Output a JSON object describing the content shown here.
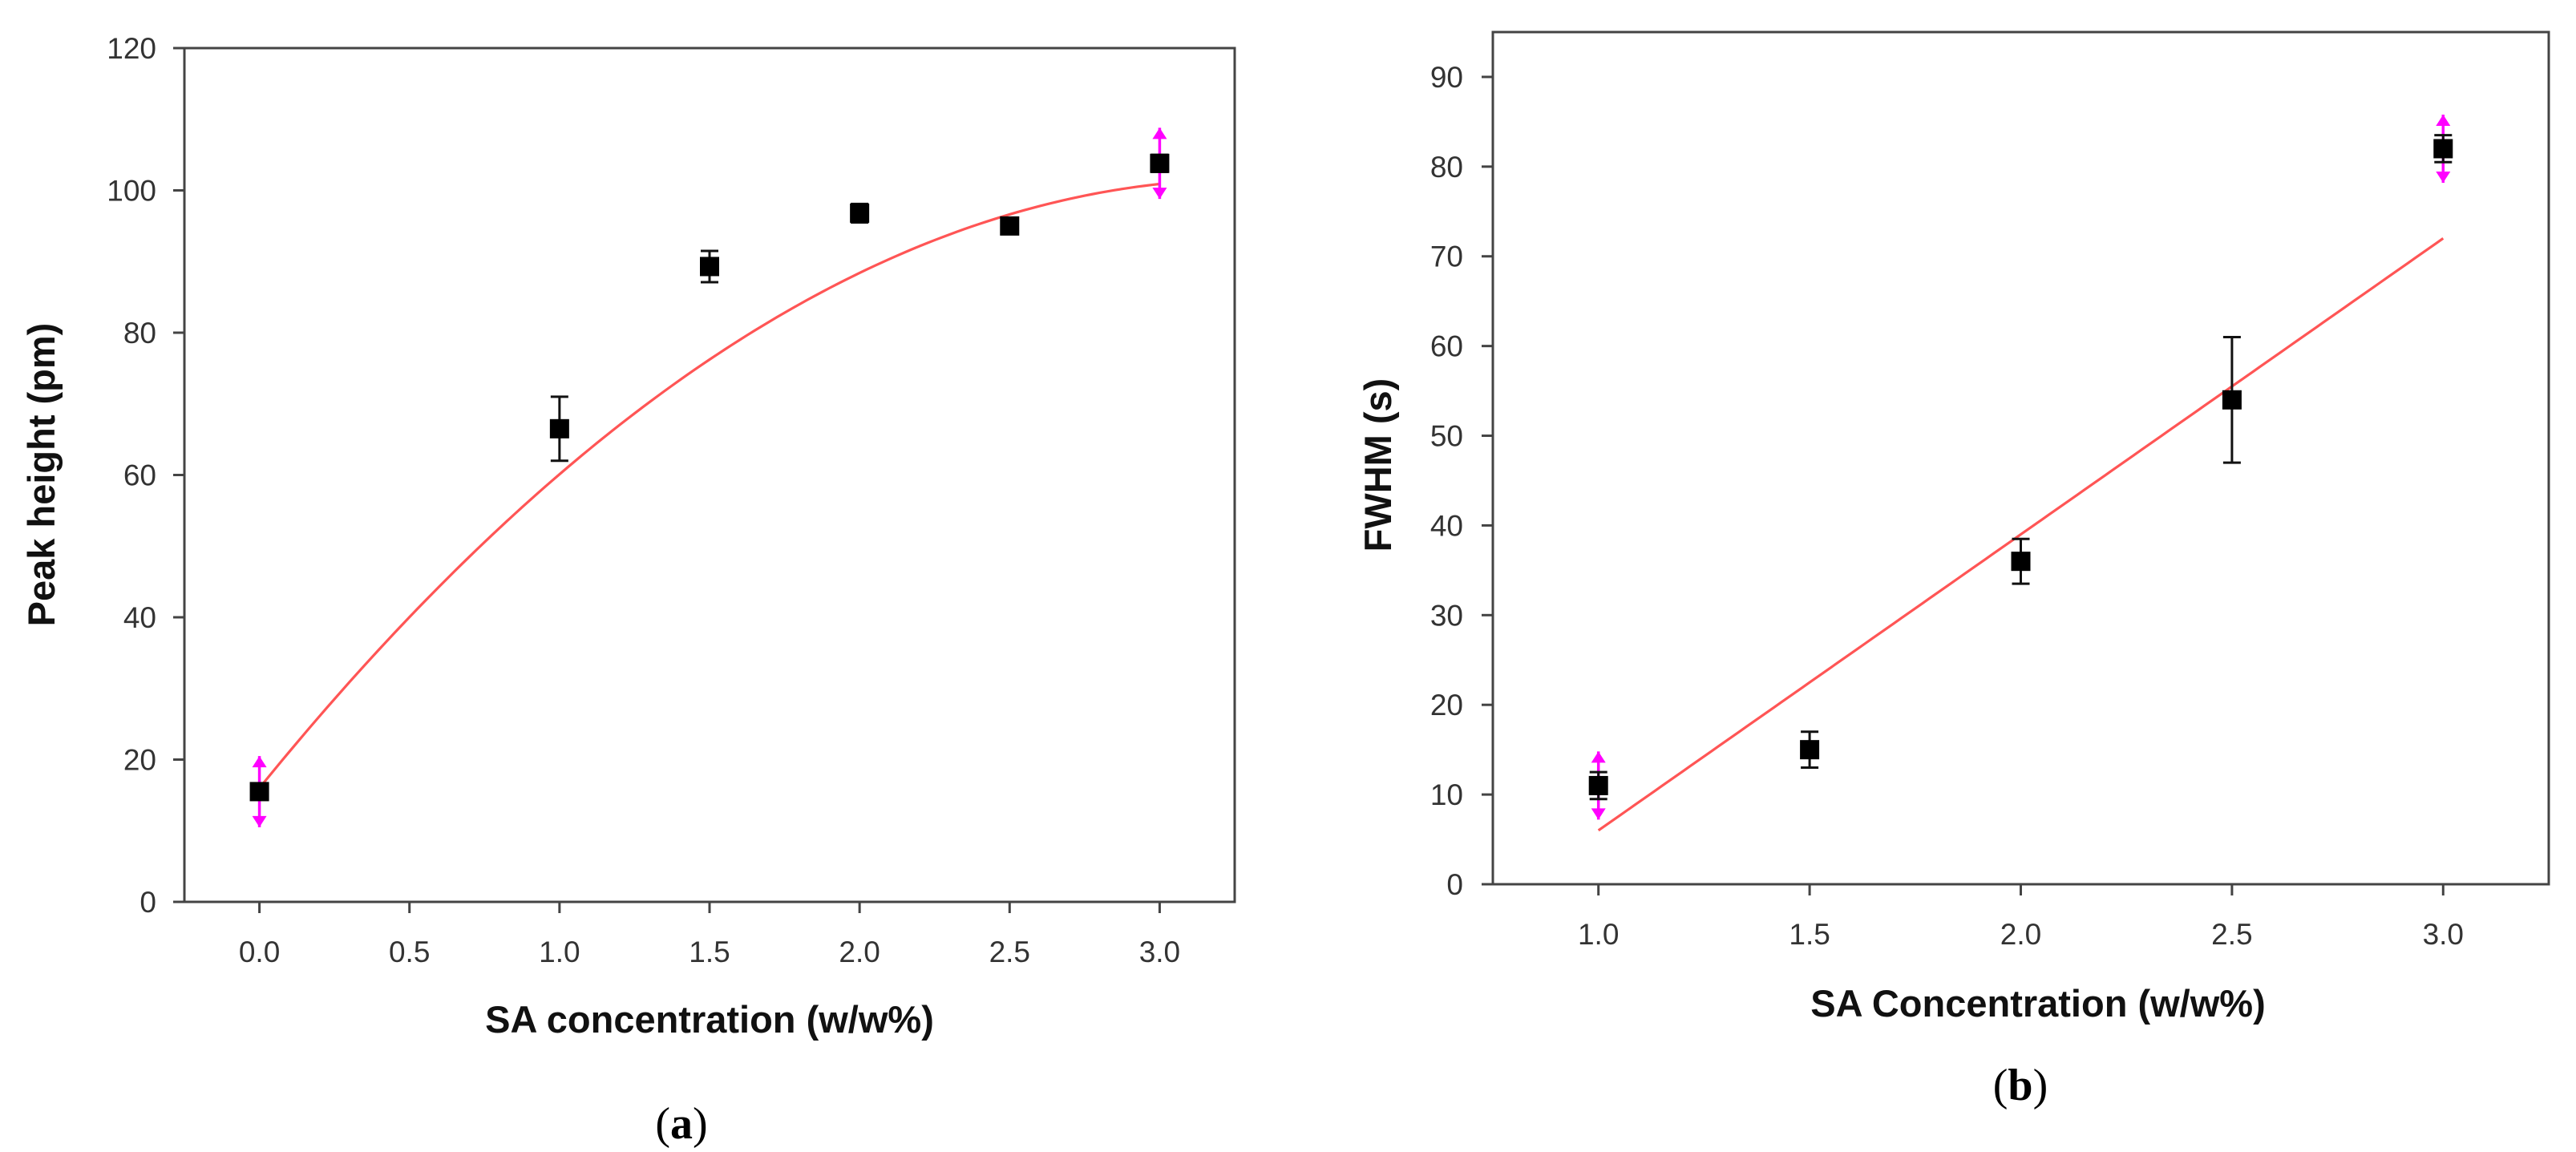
{
  "chart_data": [
    {
      "id": "a",
      "type": "scatter",
      "panel_label": "a",
      "xlabel": "SA concentration (w/w%)",
      "ylabel": "Peak height (pm)",
      "xlim": [
        -0.25,
        3.25
      ],
      "ylim": [
        0,
        120
      ],
      "xticks": [
        0.0,
        0.5,
        1.0,
        1.5,
        2.0,
        2.5,
        3.0
      ],
      "xtick_labels": [
        "0.0",
        "0.5",
        "1.0",
        "1.5",
        "2.0",
        "2.5",
        "3.0"
      ],
      "yticks": [
        0,
        20,
        40,
        60,
        80,
        100,
        120
      ],
      "ytick_labels": [
        "0",
        "20",
        "40",
        "60",
        "80",
        "100",
        "120"
      ],
      "grid": false,
      "series": [
        {
          "name": "Peak height",
          "points": [
            {
              "x": 0.0,
              "y": 15.5,
              "err": 1.0,
              "highlight": true
            },
            {
              "x": 1.0,
              "y": 66.5,
              "err": 4.5,
              "highlight": false
            },
            {
              "x": 1.5,
              "y": 89.3,
              "err": 2.2,
              "highlight": false
            },
            {
              "x": 2.0,
              "y": 96.8,
              "err": 1.3,
              "highlight": false
            },
            {
              "x": 2.5,
              "y": 95.0,
              "err": 0.8,
              "highlight": false
            },
            {
              "x": 3.0,
              "y": 103.8,
              "err": 1.2,
              "highlight": true
            }
          ]
        }
      ],
      "fit": {
        "kind": "quadratic",
        "coeffs": [
          16.0,
          52.0,
          -7.9
        ],
        "x_range": [
          0.0,
          3.0
        ]
      },
      "highlight_marker": {
        "half_height": 5.0
      },
      "colors": {
        "points": "#000000",
        "fit": "#ff5555",
        "highlight": "#ff00ff"
      }
    },
    {
      "id": "b",
      "type": "scatter",
      "panel_label": "b",
      "xlabel": "SA Concentration (w/w%)",
      "ylabel": "FWHM (s)",
      "xlim": [
        0.75,
        3.25
      ],
      "ylim": [
        0,
        95
      ],
      "xticks": [
        1.0,
        1.5,
        2.0,
        2.5,
        3.0
      ],
      "xtick_labels": [
        "1.0",
        "1.5",
        "2.0",
        "2.5",
        "3.0"
      ],
      "yticks": [
        0,
        10,
        20,
        30,
        40,
        50,
        60,
        70,
        80,
        90
      ],
      "ytick_labels": [
        "0",
        "10",
        "20",
        "30",
        "40",
        "50",
        "60",
        "70",
        "80",
        "90"
      ],
      "grid": false,
      "series": [
        {
          "name": "FWHM",
          "points": [
            {
              "x": 1.0,
              "y": 11.0,
              "err": 1.5,
              "highlight": true
            },
            {
              "x": 1.5,
              "y": 15.0,
              "err": 2.0,
              "highlight": false
            },
            {
              "x": 2.0,
              "y": 36.0,
              "err": 2.5,
              "highlight": false
            },
            {
              "x": 2.5,
              "y": 54.0,
              "err": 7.0,
              "highlight": false
            },
            {
              "x": 3.0,
              "y": 82.0,
              "err": 1.5,
              "highlight": true
            }
          ]
        }
      ],
      "fit": {
        "kind": "linear",
        "coeffs": [
          -27.0,
          33.0
        ],
        "x_range": [
          1.0,
          3.0
        ]
      },
      "highlight_marker": {
        "half_height": 3.8
      },
      "colors": {
        "points": "#000000",
        "fit": "#ff5555",
        "highlight": "#ff00ff"
      }
    }
  ]
}
